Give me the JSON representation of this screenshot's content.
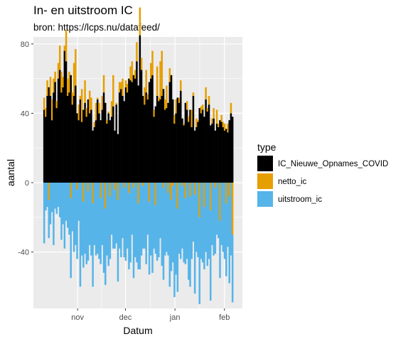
{
  "chart_data": {
    "type": "bar",
    "stacked": true,
    "title": "In- en uitstroom IC",
    "subtitle": "bron: https://lcps.nu/datafeed/",
    "xlabel": "Datum",
    "ylabel": "aantal",
    "ylim": [
      -70,
      82
    ],
    "yticks": [
      -40,
      0,
      40,
      80
    ],
    "xticks": [
      {
        "label": "nov",
        "date": "2020-11-01"
      },
      {
        "label": "dec",
        "date": "2020-12-01"
      },
      {
        "label": "jan",
        "date": "2021-01-01"
      },
      {
        "label": "feb",
        "date": "2021-02-01"
      }
    ],
    "x_start": "2020-10-11",
    "x_end": "2021-02-06",
    "grid": true,
    "background": "#ebebeb",
    "legend": {
      "title": "type",
      "position": "right",
      "entries": [
        {
          "label": "IC_Nieuwe_Opnames_COVID",
          "color": "#000000"
        },
        {
          "label": "netto_ic",
          "color": "#E69F00"
        },
        {
          "label": "uitstroom_ic",
          "color": "#56B4E9"
        }
      ]
    },
    "series": [
      {
        "name": "IC_Nieuwe_Opnames_COVID",
        "color": "#000000",
        "values": [
          42,
          38,
          50,
          55,
          50,
          36,
          52,
          58,
          43,
          60,
          65,
          52,
          55,
          76,
          70,
          50,
          52,
          62,
          45,
          50,
          56,
          40,
          36,
          48,
          35,
          42,
          46,
          38,
          48,
          40,
          42,
          30,
          32,
          36,
          48,
          40,
          36,
          42,
          52,
          46,
          34,
          40,
          36,
          38,
          44,
          30,
          45,
          28,
          52,
          54,
          50,
          47,
          55,
          52,
          60,
          59,
          58,
          62,
          60,
          70,
          56,
          85,
          65,
          50,
          45,
          52,
          48,
          58,
          60,
          62,
          38,
          44,
          50,
          47,
          48,
          50,
          54,
          42,
          43,
          46,
          58,
          62,
          48,
          34,
          40,
          49,
          46,
          53,
          37,
          33,
          46,
          42,
          35,
          42,
          32,
          50,
          30,
          32,
          35,
          43,
          40,
          42,
          38,
          48,
          41,
          45,
          33,
          34,
          37,
          30,
          34,
          32,
          36,
          35,
          32,
          30,
          31,
          29,
          36,
          40,
          38
        ]
      },
      {
        "name": "netto_ic",
        "color": "#E69F00",
        "values": [
          7,
          5,
          9,
          -10,
          11,
          12,
          8,
          6,
          4,
          9,
          14,
          12,
          6,
          3,
          18,
          10,
          12,
          -9,
          7,
          19,
          21,
          -4,
          9,
          2,
          19,
          -11,
          13,
          5,
          -5,
          13,
          7,
          -12,
          3,
          10,
          1,
          6,
          -9,
          8,
          10,
          -15,
          2,
          1,
          -8,
          9,
          18,
          -4,
          1,
          -10,
          6,
          4,
          10,
          -3,
          4,
          5,
          -6,
          8,
          12,
          -3,
          5,
          11,
          -12,
          16,
          7,
          -2,
          10,
          13,
          3,
          -11,
          9,
          14,
          4,
          -13,
          17,
          2,
          22,
          26,
          -3,
          6,
          13,
          -6,
          8,
          -10,
          -2,
          5,
          8,
          -15,
          3,
          6,
          -2,
          1,
          -9,
          5,
          3,
          -8,
          10,
          2,
          -7,
          5,
          1,
          -20,
          4,
          3,
          -14,
          7,
          2,
          5,
          -16,
          3,
          6,
          -3,
          8,
          2,
          -22,
          4,
          3,
          4,
          -12,
          5,
          -8,
          6,
          -30
        ]
      },
      {
        "name": "uitstroom_ic",
        "color": "#56B4E9",
        "values": [
          -35,
          -16,
          -14,
          -22,
          -24,
          -17,
          -36,
          -15,
          -18,
          -14,
          -20,
          -33,
          -24,
          -38,
          -22,
          -26,
          -30,
          -46,
          -28,
          -40,
          -36,
          -40,
          -22,
          -60,
          -42,
          -38,
          -41,
          -47,
          -40,
          -36,
          -42,
          -48,
          -36,
          -42,
          -41,
          -44,
          -38,
          -36,
          -52,
          -44,
          -42,
          -48,
          -36,
          -30,
          -38,
          -34,
          -35,
          -47,
          -38,
          -43,
          -32,
          -40,
          -45,
          -38,
          -44,
          -46,
          -30,
          -52,
          -43,
          -46,
          -38,
          -50,
          -42,
          -36,
          -38,
          -47,
          -30,
          -42,
          -42,
          -52,
          -38,
          -28,
          -45,
          -43,
          -32,
          -48,
          -53,
          -42,
          -40,
          -36,
          -60,
          -41,
          -44,
          -66,
          -53,
          -48,
          -41,
          -44,
          -36,
          -46,
          -38,
          -44,
          -56,
          -52,
          -44,
          -34,
          -57,
          -40,
          -43,
          -50,
          -44,
          -46,
          -36,
          -40,
          -48,
          -44,
          -52,
          -36,
          -42,
          -38,
          -30,
          -32,
          -33,
          -36,
          -40,
          -44,
          -42,
          -37,
          -50,
          -42,
          -39
        ]
      }
    ]
  }
}
